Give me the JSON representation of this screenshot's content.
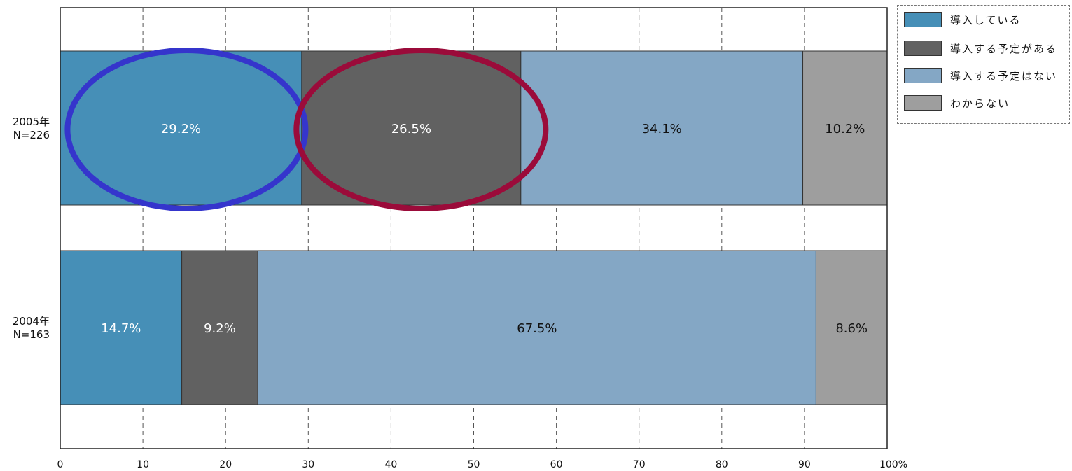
{
  "chart_data": {
    "type": "bar",
    "orientation": "horizontal",
    "stacked": true,
    "categories": [
      {
        "year": "2005年",
        "n": "N=226"
      },
      {
        "year": "2004年",
        "n": "N=163"
      }
    ],
    "series": [
      {
        "name": "導入している",
        "color": "#468fb7",
        "values": [
          29.2,
          14.7
        ],
        "labels": [
          "29.2%",
          "14.7%"
        ],
        "label_color": "#ffffff"
      },
      {
        "name": "導入する予定がある",
        "color": "#616161",
        "values": [
          26.5,
          9.2
        ],
        "labels": [
          "26.5%",
          "9.2%"
        ],
        "label_color": "#ffffff"
      },
      {
        "name": "導入する予定はない",
        "color": "#84a7c5",
        "values": [
          34.1,
          67.5
        ],
        "labels": [
          "34.1%",
          "67.5%"
        ],
        "label_color": "#111111"
      },
      {
        "name": "わからない",
        "color": "#9e9e9e",
        "values": [
          10.2,
          8.6
        ],
        "labels": [
          "10.2%",
          "8.6%"
        ],
        "label_color": "#111111"
      }
    ],
    "xlim": [
      0,
      100
    ],
    "x_ticks": [
      "0",
      "10",
      "20",
      "30",
      "40",
      "50",
      "60",
      "70",
      "80",
      "90",
      "100%"
    ],
    "grid": "vertical dashed",
    "legend_position": "top-right",
    "annotations": [
      {
        "shape": "ellipse",
        "color": "#3535cc",
        "around": "29.2%"
      },
      {
        "shape": "ellipse",
        "color": "#9b0b3a",
        "around": "26.5%"
      }
    ]
  }
}
